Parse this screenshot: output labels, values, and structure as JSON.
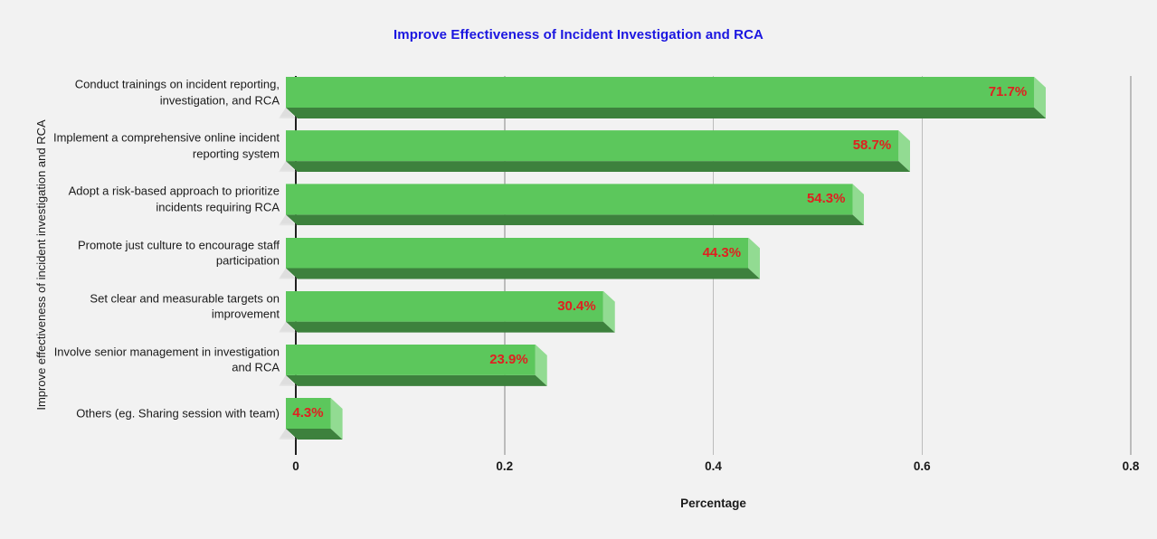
{
  "chart_data": {
    "type": "bar",
    "orientation": "horizontal",
    "title": "Improve Effectiveness of Incident Investigation and RCA",
    "xlabel": "Percentage",
    "ylabel": "Improve effectiveness of incident investigation and RCA",
    "categories": [
      "Conduct trainings on incident reporting, investigation, and RCA",
      "Implement a comprehensive online incident reporting system",
      "Adopt a risk-based approach to prioritize incidents requiring RCA",
      "Promote just culture to encourage staff participation",
      "Set clear and measurable targets on improvement",
      "Involve senior management in investigation and RCA",
      "Others (eg. Sharing session with team)"
    ],
    "values": [
      71.7,
      58.7,
      54.3,
      44.3,
      30.4,
      23.9,
      4.3
    ],
    "value_labels": [
      "71.7%",
      "58.7%",
      "54.3%",
      "44.3%",
      "30.4%",
      "23.9%",
      "4.3%"
    ],
    "x_ticks": [
      "0",
      "0.2",
      "0.4",
      "0.6",
      "0.8"
    ],
    "xlim": [
      0,
      0.8
    ],
    "grid": true,
    "legend_position": "none"
  },
  "colors": {
    "background": "#f2f2f2",
    "title": "#1b16e0",
    "text": "#1a1a1a",
    "grid": "#bcbcbc",
    "axis": "#1f1f1f",
    "bar_face": "#5cc75c",
    "bar_side": "#92db92",
    "bar_bottom": "#3d813d",
    "value_label": "#e02020"
  }
}
